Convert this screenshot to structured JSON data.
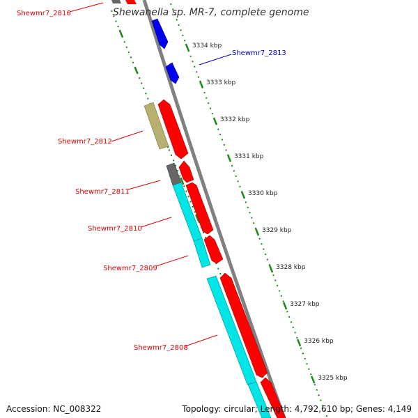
{
  "title": "Shewanella sp. MR-7, complete genome",
  "footer": {
    "accession": "Accession: NC_008322",
    "summary": "Topology: circular; Length: 4,792,610 bp; Genes: 4,149"
  },
  "colors": {
    "forward_gene": "#ff0000",
    "reverse_gene": "#0000ee",
    "cyan_gene": "#00e5e5",
    "olive_gene": "#b8b06e",
    "gray_gene": "#666666",
    "backbone": "#808080",
    "tick": "#1a8a1a",
    "label_red": "#dd0000",
    "label_blue": "#0000cc"
  },
  "scale_ticks": [
    "3334 kbp",
    "3333 kbp",
    "3332 kbp",
    "3331 kbp",
    "3330 kbp",
    "3329 kbp",
    "3328 kbp",
    "3327 kbp",
    "3326 kbp",
    "3325 kbp"
  ],
  "gene_labels": [
    {
      "name": "Shewmr7_2816",
      "color": "red"
    },
    {
      "name": "Shewmr7_2813",
      "color": "blue"
    },
    {
      "name": "Shewmr7_2812",
      "color": "red"
    },
    {
      "name": "Shewmr7_2811",
      "color": "red"
    },
    {
      "name": "Shewmr7_2810",
      "color": "red"
    },
    {
      "name": "Shewmr7_2809",
      "color": "red"
    },
    {
      "name": "Shewmr7_2808",
      "color": "red"
    }
  ]
}
